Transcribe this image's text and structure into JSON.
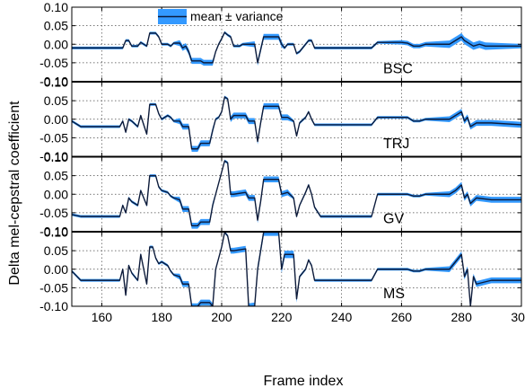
{
  "chart_data": {
    "type": "line",
    "xlabel": "Frame index",
    "ylabel": "Delta mel-cepstral coefficient",
    "xlim": [
      150,
      300
    ],
    "ylim": [
      -0.1,
      0.1
    ],
    "xticks": [
      "160",
      "180",
      "200",
      "220",
      "240",
      "260",
      "280",
      "300"
    ],
    "xtick_values": [
      160,
      180,
      200,
      220,
      240,
      260,
      280,
      300
    ],
    "yticks": [
      "0.10",
      "0.05",
      "0.00",
      "-0.05",
      "-0.10"
    ],
    "ytick_values": [
      0.1,
      0.05,
      0.0,
      -0.05,
      -0.1
    ],
    "grid": true,
    "legend": {
      "label": "mean ± variance",
      "position": "top-center"
    },
    "colors": {
      "mean": "#0d1b3a",
      "variance": "#3399ff"
    },
    "panels": [
      {
        "label": "BSC",
        "points": [
          [
            150,
            -0.01
          ],
          [
            167,
            -0.01
          ],
          [
            168,
            0.01
          ],
          [
            169,
            0.01
          ],
          [
            170,
            -0.005
          ],
          [
            172,
            -0.005
          ],
          [
            173,
            0.005
          ],
          [
            175,
            -0.005
          ],
          [
            176,
            0.03
          ],
          [
            178,
            0.03
          ],
          [
            179,
            0.02
          ],
          [
            180,
            0.0
          ],
          [
            182,
            0.0
          ],
          [
            183,
            -0.005
          ],
          [
            184,
            0.003
          ],
          [
            186,
            0.003
          ],
          [
            187,
            -0.01
          ],
          [
            188,
            -0.005
          ],
          [
            189,
            -0.02
          ],
          [
            190,
            -0.045
          ],
          [
            193,
            -0.045
          ],
          [
            194,
            -0.05
          ],
          [
            197,
            -0.05
          ],
          [
            198,
            -0.02
          ],
          [
            199,
            0.0
          ],
          [
            200,
            0.015
          ],
          [
            201,
            0.032
          ],
          [
            202,
            0.025
          ],
          [
            203,
            0.02
          ],
          [
            204,
            -0.005
          ],
          [
            206,
            -0.005
          ],
          [
            207,
            0.0
          ],
          [
            211,
            0.0
          ],
          [
            212,
            -0.05
          ],
          [
            213,
            -0.015
          ],
          [
            214,
            0.02
          ],
          [
            219,
            0.02
          ],
          [
            220,
            0.0
          ],
          [
            221,
            -0.01
          ],
          [
            222,
            0.0
          ],
          [
            224,
            0.0
          ],
          [
            225,
            -0.025
          ],
          [
            226,
            -0.02
          ],
          [
            228,
            0.0
          ],
          [
            229,
            0.01
          ],
          [
            230,
            0.01
          ],
          [
            231,
            -0.01
          ],
          [
            232,
            -0.01
          ],
          [
            233,
            -0.01
          ],
          [
            250,
            -0.01
          ],
          [
            252,
            0.005
          ],
          [
            260,
            0.005
          ],
          [
            262,
            0.003
          ],
          [
            264,
            -0.005
          ],
          [
            266,
            -0.005
          ],
          [
            268,
            0.0
          ],
          [
            276,
            0.0
          ],
          [
            278,
            0.01
          ],
          [
            280,
            0.02
          ],
          [
            281,
            0.01
          ],
          [
            282,
            0.005
          ],
          [
            284,
            -0.005
          ],
          [
            286,
            0.0
          ],
          [
            288,
            -0.005
          ],
          [
            300,
            -0.005
          ]
        ],
        "bands": [
          [
            0.0,
            0.0
          ],
          [
            186,
            197,
            0.008
          ],
          [
            211,
            220,
            0.008
          ],
          [
            260,
            300,
            0.006
          ],
          [
            276,
            290,
            0.01
          ]
        ]
      },
      {
        "label": "TRJ",
        "points": [
          [
            150,
            -0.005
          ],
          [
            153,
            -0.02
          ],
          [
            166,
            -0.02
          ],
          [
            167,
            -0.005
          ],
          [
            168,
            -0.035
          ],
          [
            169,
            0.0
          ],
          [
            170,
            -0.005
          ],
          [
            172,
            -0.02
          ],
          [
            173,
            0.01
          ],
          [
            175,
            -0.04
          ],
          [
            176,
            0.04
          ],
          [
            178,
            0.04
          ],
          [
            179,
            0.015
          ],
          [
            180,
            0.0
          ],
          [
            182,
            0.01
          ],
          [
            183,
            0.005
          ],
          [
            184,
            -0.005
          ],
          [
            186,
            -0.005
          ],
          [
            187,
            -0.02
          ],
          [
            189,
            -0.02
          ],
          [
            190,
            -0.08
          ],
          [
            192,
            -0.08
          ],
          [
            193,
            -0.065
          ],
          [
            196,
            -0.065
          ],
          [
            197,
            -0.03
          ],
          [
            198,
            0.0
          ],
          [
            199,
            0.005
          ],
          [
            200,
            0.02
          ],
          [
            201,
            0.06
          ],
          [
            202,
            0.055
          ],
          [
            203,
            0.0
          ],
          [
            204,
            0.01
          ],
          [
            208,
            0.01
          ],
          [
            209,
            -0.005
          ],
          [
            211,
            -0.005
          ],
          [
            212,
            -0.06
          ],
          [
            213,
            -0.01
          ],
          [
            214,
            0.035
          ],
          [
            219,
            0.035
          ],
          [
            220,
            0.005
          ],
          [
            222,
            0.005
          ],
          [
            224,
            -0.005
          ],
          [
            225,
            -0.045
          ],
          [
            226,
            -0.01
          ],
          [
            228,
            0.005
          ],
          [
            229,
            0.02
          ],
          [
            230,
            0.0
          ],
          [
            231,
            -0.015
          ],
          [
            233,
            -0.015
          ],
          [
            250,
            -0.015
          ],
          [
            252,
            0.005
          ],
          [
            262,
            0.005
          ],
          [
            264,
            -0.005
          ],
          [
            266,
            -0.005
          ],
          [
            268,
            0.0
          ],
          [
            276,
            0.0
          ],
          [
            278,
            0.01
          ],
          [
            280,
            0.02
          ],
          [
            281,
            -0.005
          ],
          [
            282,
            0.005
          ],
          [
            283,
            -0.02
          ],
          [
            285,
            -0.01
          ],
          [
            290,
            -0.01
          ],
          [
            300,
            -0.015
          ]
        ],
        "bands": [
          [
            186,
            197,
            0.008
          ],
          [
            203,
            210,
            0.008
          ],
          [
            211,
            222,
            0.008
          ],
          [
            276,
            300,
            0.008
          ]
        ]
      },
      {
        "label": "GV",
        "points": [
          [
            150,
            -0.055
          ],
          [
            153,
            -0.06
          ],
          [
            166,
            -0.06
          ],
          [
            167,
            -0.03
          ],
          [
            168,
            -0.05
          ],
          [
            169,
            -0.01
          ],
          [
            170,
            -0.02
          ],
          [
            172,
            -0.03
          ],
          [
            173,
            0.01
          ],
          [
            175,
            -0.03
          ],
          [
            176,
            0.05
          ],
          [
            178,
            0.05
          ],
          [
            179,
            0.02
          ],
          [
            180,
            0.01
          ],
          [
            182,
            0.005
          ],
          [
            183,
            -0.005
          ],
          [
            184,
            -0.01
          ],
          [
            186,
            -0.015
          ],
          [
            187,
            -0.04
          ],
          [
            189,
            -0.04
          ],
          [
            190,
            -0.085
          ],
          [
            192,
            -0.085
          ],
          [
            193,
            -0.075
          ],
          [
            196,
            -0.075
          ],
          [
            197,
            -0.03
          ],
          [
            198,
            0.0
          ],
          [
            199,
            0.03
          ],
          [
            200,
            0.06
          ],
          [
            201,
            0.09
          ],
          [
            202,
            0.085
          ],
          [
            203,
            0.0
          ],
          [
            204,
            0.0
          ],
          [
            208,
            0.005
          ],
          [
            209,
            -0.01
          ],
          [
            211,
            -0.01
          ],
          [
            212,
            -0.07
          ],
          [
            213,
            -0.02
          ],
          [
            214,
            0.04
          ],
          [
            219,
            0.04
          ],
          [
            220,
            0.0
          ],
          [
            222,
            0.005
          ],
          [
            224,
            -0.01
          ],
          [
            225,
            -0.06
          ],
          [
            226,
            -0.03
          ],
          [
            228,
            0.005
          ],
          [
            229,
            0.025
          ],
          [
            230,
            0.0
          ],
          [
            231,
            -0.035
          ],
          [
            233,
            -0.06
          ],
          [
            250,
            -0.06
          ],
          [
            252,
            0.0
          ],
          [
            262,
            0.0
          ],
          [
            264,
            -0.005
          ],
          [
            266,
            -0.005
          ],
          [
            268,
            0.0
          ],
          [
            276,
            0.0
          ],
          [
            278,
            0.01
          ],
          [
            280,
            0.025
          ],
          [
            281,
            -0.01
          ],
          [
            282,
            0.0
          ],
          [
            283,
            -0.025
          ],
          [
            285,
            -0.01
          ],
          [
            290,
            -0.015
          ],
          [
            300,
            -0.015
          ]
        ],
        "bands": [
          [
            186,
            197,
            0.008
          ],
          [
            203,
            210,
            0.008
          ],
          [
            211,
            222,
            0.008
          ],
          [
            276,
            300,
            0.008
          ]
        ]
      },
      {
        "label": "MS",
        "points": [
          [
            150,
            -0.005
          ],
          [
            153,
            -0.03
          ],
          [
            166,
            -0.03
          ],
          [
            167,
            0.0
          ],
          [
            168,
            -0.07
          ],
          [
            169,
            0.01
          ],
          [
            170,
            -0.01
          ],
          [
            172,
            -0.03
          ],
          [
            173,
            0.04
          ],
          [
            175,
            -0.04
          ],
          [
            176,
            0.06
          ],
          [
            177,
            0.06
          ],
          [
            178,
            0.03
          ],
          [
            179,
            0.015
          ],
          [
            180,
            0.02
          ],
          [
            182,
            0.01
          ],
          [
            183,
            -0.005
          ],
          [
            184,
            -0.015
          ],
          [
            186,
            -0.02
          ],
          [
            187,
            -0.04
          ],
          [
            189,
            -0.04
          ],
          [
            190,
            -0.1
          ],
          [
            192,
            -0.1
          ],
          [
            193,
            -0.09
          ],
          [
            196,
            -0.09
          ],
          [
            197,
            -0.1
          ],
          [
            198,
            0.0
          ],
          [
            199,
            0.03
          ],
          [
            200,
            0.06
          ],
          [
            201,
            0.1
          ],
          [
            202,
            0.09
          ],
          [
            203,
            0.05
          ],
          [
            204,
            0.05
          ],
          [
            208,
            0.055
          ],
          [
            209,
            -0.1
          ],
          [
            211,
            -0.1
          ],
          [
            212,
            0.0
          ],
          [
            214,
            0.1
          ],
          [
            219,
            0.1
          ],
          [
            220,
            0.0
          ],
          [
            221,
            0.04
          ],
          [
            224,
            0.04
          ],
          [
            225,
            -0.08
          ],
          [
            226,
            -0.02
          ],
          [
            228,
            0.0
          ],
          [
            229,
            0.025
          ],
          [
            230,
            0.01
          ],
          [
            231,
            -0.03
          ],
          [
            233,
            -0.03
          ],
          [
            250,
            -0.03
          ],
          [
            252,
            0.0
          ],
          [
            262,
            0.0
          ],
          [
            264,
            -0.005
          ],
          [
            266,
            -0.005
          ],
          [
            268,
            0.0
          ],
          [
            276,
            0.0
          ],
          [
            278,
            0.02
          ],
          [
            280,
            0.04
          ],
          [
            281,
            -0.02
          ],
          [
            282,
            0.0
          ],
          [
            283,
            -0.1
          ],
          [
            284,
            -0.02
          ],
          [
            285,
            -0.04
          ],
          [
            290,
            -0.03
          ],
          [
            300,
            -0.03
          ]
        ],
        "bands": [
          [
            186,
            197,
            0.008
          ],
          [
            203,
            210,
            0.008
          ],
          [
            211,
            225,
            0.01
          ],
          [
            276,
            300,
            0.008
          ]
        ]
      }
    ]
  }
}
